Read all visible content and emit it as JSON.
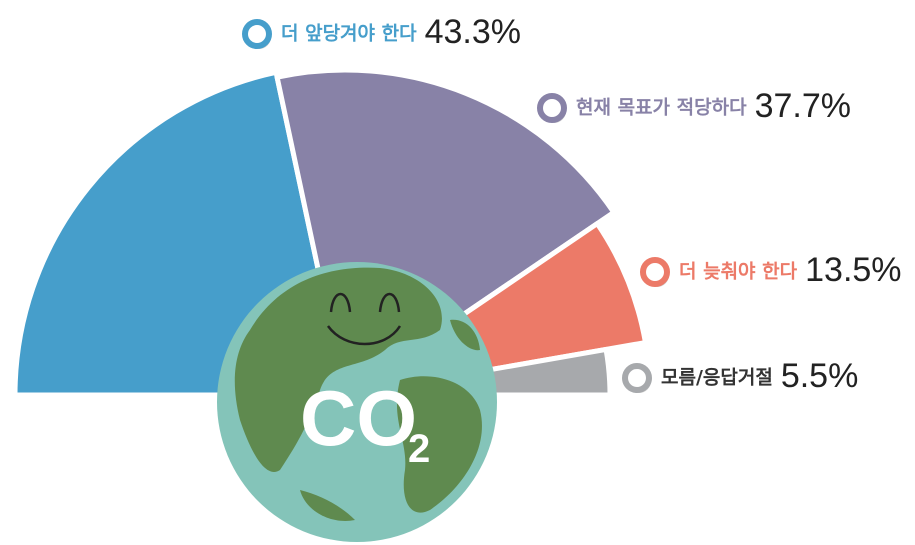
{
  "chart_data": {
    "type": "half-pie",
    "categories": [
      "더 앞당겨야 한다",
      "현재 목표가 적당하다",
      "더 늦춰야 한다",
      "모름/응답거절"
    ],
    "values": [
      43.3,
      37.7,
      13.5,
      5.5
    ],
    "value_labels": [
      "43.3%",
      "37.7%",
      "13.5%",
      "5.5%"
    ],
    "colors": [
      "#469ecb",
      "#8882a7",
      "#ec7a68",
      "#a7a9ac"
    ],
    "annotation": {
      "text": "CO",
      "subscript": "2"
    }
  }
}
